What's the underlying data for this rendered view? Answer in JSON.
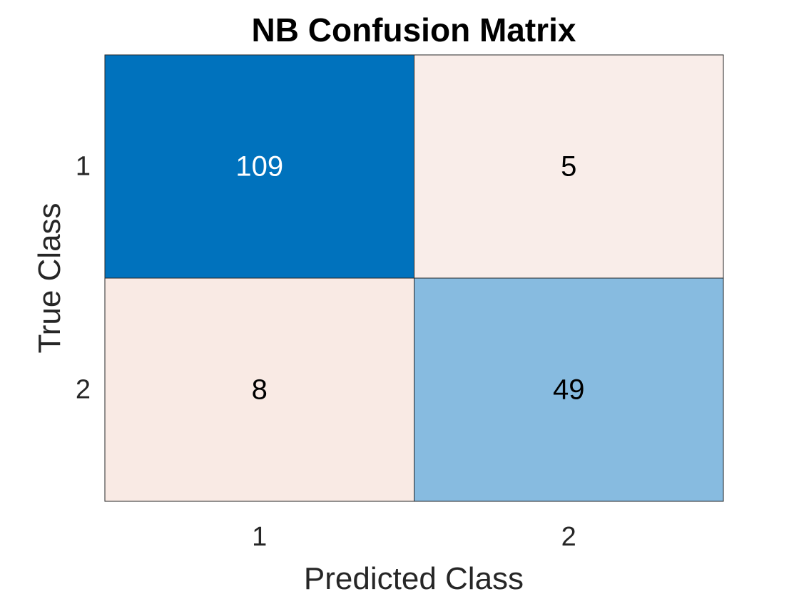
{
  "chart_data": {
    "type": "heatmap",
    "title": "NB Confusion Matrix",
    "xlabel": "Predicted Class",
    "ylabel": "True Class",
    "x_categories": [
      "1",
      "2"
    ],
    "y_categories": [
      "1",
      "2"
    ],
    "values": [
      [
        109,
        5
      ],
      [
        8,
        49
      ]
    ],
    "cell_colors": [
      [
        "#0072BD",
        "#F9EDE9"
      ],
      [
        "#F9EAE4",
        "#87BBE0"
      ]
    ],
    "cell_text_colors": [
      [
        "#FFFFFF",
        "#000000"
      ],
      [
        "#000000",
        "#000000"
      ]
    ],
    "grid": true,
    "legend": "none"
  }
}
